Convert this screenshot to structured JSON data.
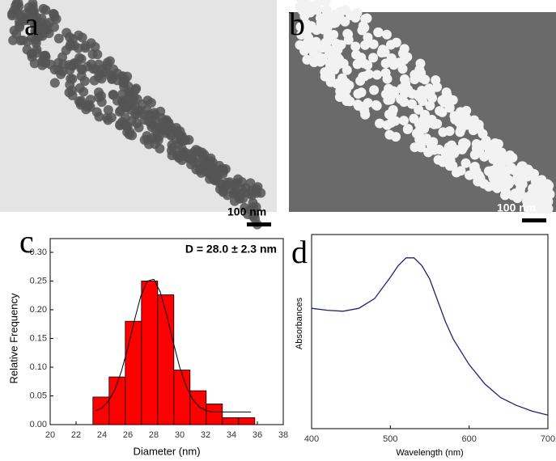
{
  "panels": [
    {
      "label": "a",
      "scale_bar": "100 nm"
    },
    {
      "label": "b",
      "scale_bar": "100 nm"
    }
  ],
  "chart_data": [
    {
      "type": "histogram",
      "label": "c",
      "annotation": "D = 28.0 ± 2.3 nm",
      "x_label": "Diameter (nm)",
      "y_label": "Relative Frequency",
      "color": "#ff0000",
      "bins": [
        23.3,
        24.55,
        25.8,
        27.05,
        28.3,
        29.55,
        30.8,
        32.05,
        33.3,
        34.55,
        35.8
      ],
      "values": [
        0.048,
        0.083,
        0.18,
        0.25,
        0.226,
        0.095,
        0.059,
        0.036,
        0.012,
        0.012
      ],
      "fit": {
        "x": [
          23.5,
          24,
          24.5,
          25,
          25.5,
          26,
          26.5,
          27,
          27.5,
          28,
          28.5,
          29,
          29.5,
          30,
          30.5,
          31,
          31.5,
          32,
          32.5,
          33,
          33.5,
          34,
          34.5,
          35,
          35.5
        ],
        "values": [
          0.024,
          0.029,
          0.041,
          0.061,
          0.093,
          0.134,
          0.181,
          0.224,
          0.25,
          0.253,
          0.231,
          0.191,
          0.144,
          0.1,
          0.067,
          0.044,
          0.031,
          0.025,
          0.022,
          0.022,
          0.022,
          0.022,
          0.022,
          0.022,
          0.022
        ]
      },
      "xlim": [
        20,
        38
      ],
      "xticks": [
        20,
        22,
        24,
        26,
        28,
        30,
        32,
        34,
        36,
        38
      ],
      "ylim": [
        0,
        0.3
      ],
      "yticks": [
        {
          "value": 0,
          "label": "0.00"
        },
        {
          "value": 0.05,
          "label": "0.05"
        },
        {
          "value": 0.1,
          "label": "0.10"
        },
        {
          "value": 0.15,
          "label": "0.15"
        },
        {
          "value": 0.2,
          "label": "0.20"
        },
        {
          "value": 0.25,
          "label": "0.25"
        },
        {
          "value": 0.3,
          "label": "0.30"
        }
      ]
    },
    {
      "type": "line",
      "label": "d",
      "x_label": "Wavelength (nm)",
      "y_label": "Absorbances",
      "color": "#1f1f7a",
      "x": [
        400,
        420,
        440,
        460,
        480,
        500,
        510,
        520,
        530,
        540,
        550,
        560,
        570,
        580,
        600,
        620,
        640,
        660,
        680,
        700
      ],
      "values": [
        0.62,
        0.61,
        0.605,
        0.62,
        0.67,
        0.78,
        0.84,
        0.88,
        0.88,
        0.84,
        0.77,
        0.66,
        0.55,
        0.46,
        0.33,
        0.23,
        0.16,
        0.12,
        0.09,
        0.07
      ],
      "xlim": [
        400,
        700
      ],
      "xticks": [
        400,
        500,
        600,
        700
      ],
      "ylim": [
        0,
        1
      ]
    }
  ]
}
